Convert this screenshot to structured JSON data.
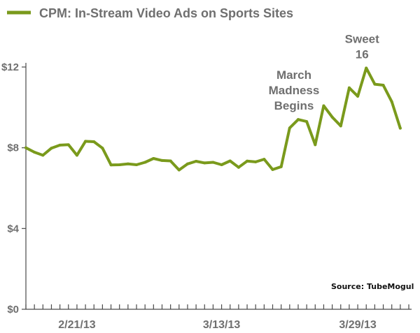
{
  "chart_data": {
    "type": "line",
    "title": "CPM: In-Stream Video Ads on Sports Sites",
    "source": "Source: TubeMogul",
    "ylim": [
      0,
      12
    ],
    "yticks": [
      {
        "value": 0,
        "label": "$0"
      },
      {
        "value": 4,
        "label": "$4"
      },
      {
        "value": 8,
        "label": "$8"
      },
      {
        "value": 12,
        "label": "$12"
      }
    ],
    "xlim": [
      0,
      45
    ],
    "xticks_count": 46,
    "xtick_labels": [
      {
        "index": 6,
        "label": "2/21/13"
      },
      {
        "index": 23,
        "label": "3/13/13"
      },
      {
        "index": 39,
        "label": "3/29/13"
      }
    ],
    "grid": false,
    "legend_position": "top-left",
    "series": [
      {
        "name": "CPM: In-Stream Video Ads on Sports Sites",
        "color": "#7a9a1c",
        "values": [
          8.0,
          7.78,
          7.63,
          7.98,
          8.13,
          8.15,
          7.63,
          8.32,
          8.3,
          7.98,
          7.15,
          7.16,
          7.2,
          7.16,
          7.28,
          7.47,
          7.37,
          7.35,
          6.9,
          7.2,
          7.33,
          7.25,
          7.28,
          7.16,
          7.35,
          7.03,
          7.34,
          7.3,
          7.43,
          6.92,
          7.06,
          8.98,
          9.4,
          9.3,
          8.15,
          10.08,
          9.52,
          9.08,
          10.97,
          10.55,
          11.95,
          11.15,
          11.1,
          10.28,
          8.97
        ]
      }
    ],
    "annotations": [
      {
        "lines": [
          "March",
          "Madness",
          "Begins"
        ],
        "index": 32
      },
      {
        "lines": [
          "Sweet",
          "16"
        ],
        "index": 40
      }
    ]
  }
}
